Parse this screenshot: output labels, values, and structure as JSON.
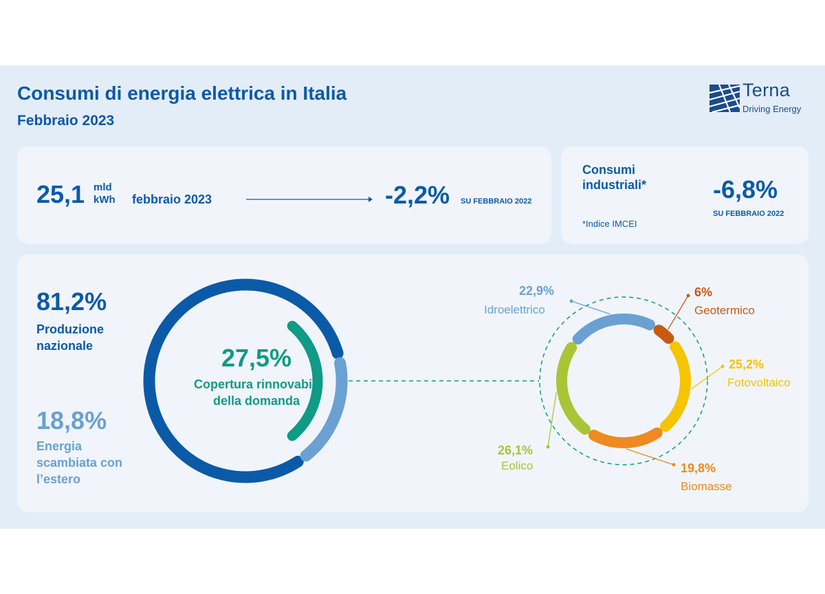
{
  "header": {
    "title": "Consumi di energia elettrica in Italia",
    "subtitle": "Febbraio 2023"
  },
  "logo": {
    "name": "Terna",
    "tagline": "Driving Energy",
    "color": "#1a4c8e"
  },
  "consumption": {
    "value": "25,1",
    "unit_line1": "mld",
    "unit_line2": "kWh",
    "period": "febbraio 2023",
    "change": "-2,2%",
    "change_label": "SU FEBBRAIO 2022"
  },
  "industrial": {
    "label": "Consumi industriali*",
    "note": "*Indice IMCEI",
    "change": "-6,8%",
    "change_label": "SU FEBBRAIO 2022"
  },
  "chart_data": [
    {
      "type": "pie",
      "series": [
        {
          "name": "Produzione nazionale",
          "value": 81.2,
          "label": "81,2%",
          "text": "Produzione nazionale",
          "color": "#0b5aa8"
        },
        {
          "name": "Energia scambiata con l’estero",
          "value": 18.8,
          "label": "18,8%",
          "text": "Energia scambiata con l’estero",
          "color": "#6aa1d2"
        }
      ],
      "renewable_coverage": {
        "value": 27.5,
        "label": "27,5%",
        "text": "Copertura rinnovabili della domanda",
        "color": "#0f9b86"
      }
    },
    {
      "type": "pie",
      "slices": [
        {
          "name": "Geotermico",
          "value": 6,
          "label": "6%",
          "color": "#c85a12"
        },
        {
          "name": "Fotovoltaico",
          "value": 25.2,
          "label": "25,2%",
          "color": "#f6c400"
        },
        {
          "name": "Biomasse",
          "value": 19.8,
          "label": "19,8%",
          "color": "#ee8a1f"
        },
        {
          "name": "Eolico",
          "value": 26.1,
          "label": "26,1%",
          "color": "#a9c536"
        },
        {
          "name": "Idroelettrico",
          "value": 22.9,
          "label": "22,9%",
          "color": "#6aa1d2"
        }
      ]
    }
  ],
  "colors": {
    "primary": "#0b5aa8",
    "light_blue": "#6aa1d2",
    "teal": "#0f9b86",
    "background": "#e3edf7",
    "card": "#f1f5fb"
  }
}
